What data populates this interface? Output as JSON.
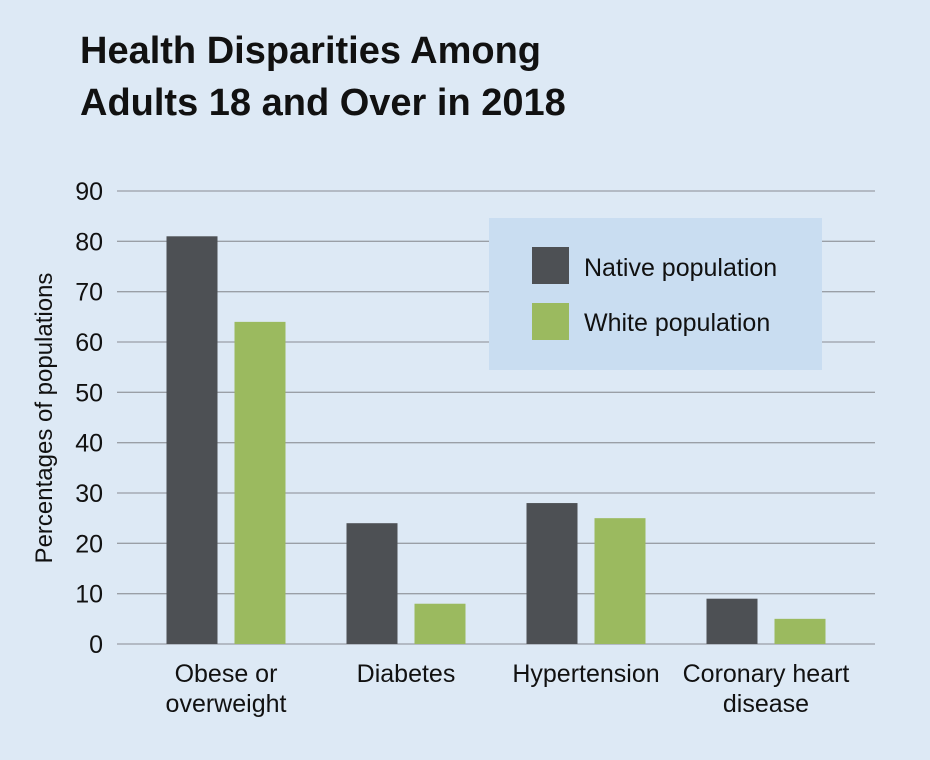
{
  "colors": {
    "background": "#dde9f5",
    "legend_background": "#c9ddf1",
    "gridline": "#9a9fa6",
    "native": "#4d5054",
    "white": "#9bba5f"
  },
  "chart_data": {
    "type": "bar",
    "title_lines": [
      "Health Disparities Among",
      "Adults 18 and Over in 2018"
    ],
    "ylabel": "Percentages of populations",
    "xlabel": "",
    "ylim": [
      0,
      90
    ],
    "yticks": [
      0,
      10,
      20,
      30,
      40,
      50,
      60,
      70,
      80,
      90
    ],
    "grid": true,
    "legend_position": "top-right",
    "categories": [
      [
        "Obese or",
        "overweight"
      ],
      [
        "Diabetes"
      ],
      [
        "Hypertension"
      ],
      [
        "Coronary heart",
        "disease"
      ]
    ],
    "series": [
      {
        "name": "Native population",
        "color": "#4d5054",
        "values": [
          81,
          24,
          28,
          9
        ]
      },
      {
        "name": "White population",
        "color": "#9bba5f",
        "values": [
          64,
          8,
          25,
          5
        ]
      }
    ]
  }
}
